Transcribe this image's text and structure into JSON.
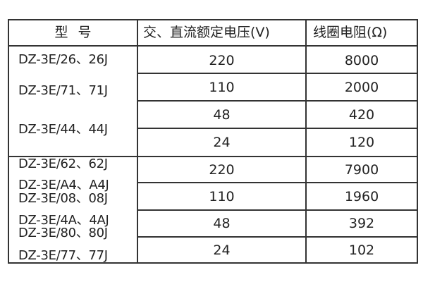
{
  "headers": [
    "型 号",
    "交、直流额定电压(V)",
    "线圈电阻(Ω)"
  ],
  "groups": [
    {
      "models": [
        "DZ-3E/26、26J",
        "DZ-3E/71、71J",
        "DZ-3E/44、44J"
      ]
    },
    {
      "models": [
        "DZ-3E/62、62J",
        "DZ-3E/A4、A4J",
        "DZ-3E/08、08J",
        "DZ-3E/4A、4AJ",
        "DZ-3E/80、80J",
        "DZ-3E/77、77J"
      ]
    }
  ],
  "rows": [
    {
      "voltage": "220",
      "resistance": "8000"
    },
    {
      "voltage": "110",
      "resistance": "2000"
    },
    {
      "voltage": "48",
      "resistance": "420"
    },
    {
      "voltage": "24",
      "resistance": "120"
    },
    {
      "voltage": "220",
      "resistance": "7900"
    },
    {
      "voltage": "110",
      "resistance": "1960"
    },
    {
      "voltage": "48",
      "resistance": "392"
    },
    {
      "voltage": "24",
      "resistance": "102"
    }
  ]
}
